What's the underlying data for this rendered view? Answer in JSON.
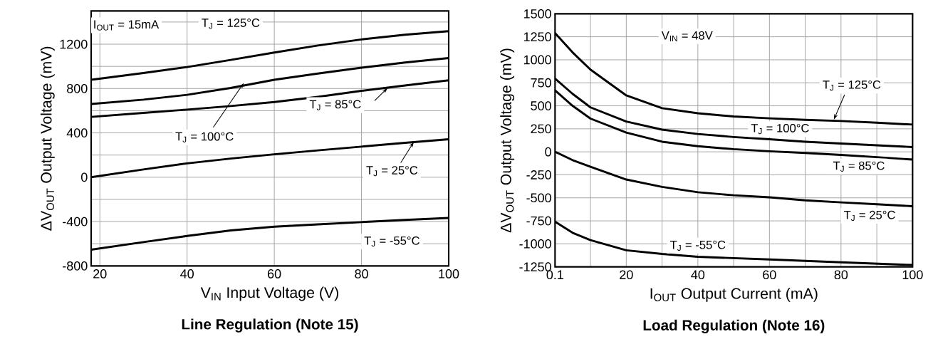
{
  "chart_data": [
    {
      "type": "line",
      "title": "Line Regulation (Note 15)",
      "xlabel": "V$_{IN}$  Input Voltage (V)",
      "ylabel": "ΔV$_{OUT}$ Output Voltage (mV)",
      "annotations": [
        "I$_{OUT}$ = 15mA"
      ],
      "x": [
        18,
        30,
        40,
        50,
        60,
        70,
        80,
        90,
        100
      ],
      "series": [
        {
          "name": "T$_{J}$ = 125°C",
          "color": "#000000",
          "values": [
            879,
            940,
            994,
            1058,
            1125,
            1188,
            1243,
            1285,
            1317
          ]
        },
        {
          "name": "T$_{J}$ = 100°C",
          "color": "#000000",
          "values": [
            661,
            700,
            743,
            805,
            879,
            935,
            988,
            1035,
            1075
          ]
        },
        {
          "name": "T$_{J}$ = 85°C",
          "color": "#000000",
          "values": [
            544,
            580,
            610,
            642,
            678,
            725,
            779,
            828,
            874
          ]
        },
        {
          "name": "T$_{J}$ = 25°C",
          "color": "#000000",
          "values": [
            0,
            70,
            125,
            168,
            207,
            242,
            276,
            310,
            343
          ]
        },
        {
          "name": "T$_{J}$ = -55°C",
          "color": "#000000",
          "values": [
            -653,
            -585,
            -530,
            -480,
            -446,
            -425,
            -405,
            -385,
            -367
          ]
        }
      ],
      "xlim": [
        18,
        100
      ],
      "ylim": [
        -800,
        1500
      ],
      "xticks": [
        20,
        40,
        60,
        80,
        100
      ],
      "yticks": [
        -800,
        {
          "value": -600,
          "label": null
        },
        -400,
        {
          "value": -200,
          "label": null
        },
        0,
        {
          "value": 200,
          "label": null
        },
        400,
        {
          "value": 600,
          "label": null
        },
        800,
        {
          "value": 1000,
          "label": null
        },
        1200,
        {
          "value": 1400,
          "label": null
        }
      ],
      "grid": true
    },
    {
      "type": "line",
      "title": "Load Regulation (Note 16)",
      "xlabel": "I$_{OUT}$  Output Current (mA)",
      "ylabel": "ΔV$_{OUT}$ Output Voltage (mV)",
      "annotations": [
        "V$_{IN}$ = 48V"
      ],
      "x": [
        0.1,
        5,
        10,
        20,
        30,
        40,
        50,
        60,
        70,
        80,
        90,
        100
      ],
      "series": [
        {
          "name": "T$_{J}$ = 125°C",
          "color": "#000000",
          "values": [
            1290,
            1080,
            893,
            613,
            474,
            419,
            384,
            364,
            348,
            335,
            316,
            296
          ]
        },
        {
          "name": "T$_{J}$ = 100°C",
          "color": "#000000",
          "values": [
            796,
            630,
            483,
            329,
            241,
            194,
            161,
            136,
            110,
            90,
            71,
            52
          ]
        },
        {
          "name": "T$_{J}$ = 85°C",
          "color": "#000000",
          "values": [
            667,
            500,
            361,
            209,
            110,
            61,
            29,
            6,
            -13,
            -33,
            -58,
            -84
          ]
        },
        {
          "name": "T$_{J}$ = 25°C",
          "color": "#000000",
          "values": [
            0,
            -90,
            -162,
            -301,
            -381,
            -439,
            -472,
            -494,
            -527,
            -549,
            -569,
            -591
          ]
        },
        {
          "name": "T$_{J}$ = -55°C",
          "color": "#000000",
          "values": [
            -760,
            -880,
            -960,
            -1070,
            -1110,
            -1140,
            -1155,
            -1170,
            -1185,
            -1200,
            -1215,
            -1230
          ]
        }
      ],
      "xlim": [
        0.1,
        100
      ],
      "ylim": [
        -1250,
        1500
      ],
      "xticks": [
        0.1,
        {
          "value": 10,
          "label": null
        },
        20,
        {
          "value": 30,
          "label": null
        },
        40,
        {
          "value": 50,
          "label": null
        },
        60,
        {
          "value": 70,
          "label": null
        },
        80,
        {
          "value": 90,
          "label": null
        },
        100
      ],
      "yticks": [
        -1250,
        -1000,
        -750,
        -500,
        -250,
        0,
        250,
        500,
        750,
        1000,
        1250,
        1500
      ],
      "grid": true
    }
  ]
}
